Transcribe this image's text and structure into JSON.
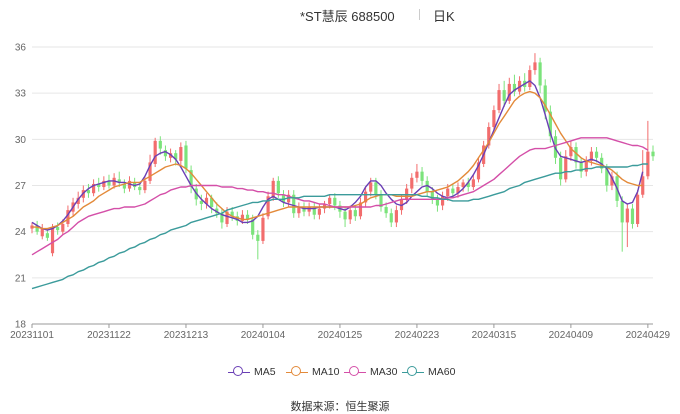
{
  "header": {
    "title": "*ST慧辰 688500",
    "period": "日K"
  },
  "source": "数据来源：恒生聚源",
  "colors": {
    "up": "#f26d6d",
    "down": "#7be37b",
    "ma5": "#6a3fb5",
    "ma10": "#e38a3a",
    "ma30": "#d44fa8",
    "ma60": "#3b9b9b"
  },
  "chart_data": {
    "type": "candlestick",
    "title": "*ST慧辰 688500",
    "ylim": [
      18,
      36
    ],
    "yticks": [
      "18",
      "21",
      "24",
      "27",
      "30",
      "33",
      "36"
    ],
    "xticks": [
      "20231101",
      "20231122",
      "20231213",
      "20240104",
      "20240125",
      "20240223",
      "20240315",
      "20240409",
      "20240429"
    ],
    "xtick_index": [
      0,
      15,
      30,
      45,
      60,
      75,
      90,
      105,
      120
    ],
    "grid": true,
    "legend_position": "bottom",
    "candles": [
      [
        24.2,
        24.4,
        24.6,
        23.9
      ],
      [
        24.4,
        24.0,
        24.7,
        23.8
      ],
      [
        23.7,
        24.2,
        24.5,
        23.5
      ],
      [
        23.9,
        23.6,
        24.2,
        23.4
      ],
      [
        22.6,
        24.3,
        24.5,
        22.4
      ],
      [
        24.3,
        24.1,
        24.6,
        23.8
      ],
      [
        24.0,
        24.5,
        24.8,
        23.8
      ],
      [
        24.5,
        25.4,
        25.7,
        24.3
      ],
      [
        25.3,
        25.9,
        26.2,
        25.0
      ],
      [
        25.8,
        26.2,
        26.6,
        25.5
      ],
      [
        26.2,
        26.7,
        27.0,
        25.9
      ],
      [
        26.7,
        26.5,
        27.1,
        26.2
      ],
      [
        26.5,
        27.1,
        27.4,
        26.3
      ],
      [
        27.1,
        26.9,
        27.5,
        26.6
      ],
      [
        26.9,
        27.3,
        27.6,
        26.7
      ],
      [
        27.3,
        27.0,
        27.7,
        26.8
      ],
      [
        27.0,
        27.5,
        27.8,
        26.8
      ],
      [
        27.4,
        27.2,
        27.9,
        26.9
      ],
      [
        27.1,
        26.8,
        27.4,
        26.5
      ],
      [
        26.8,
        27.3,
        27.6,
        26.6
      ],
      [
        27.2,
        26.9,
        27.5,
        26.7
      ],
      [
        26.9,
        26.7,
        27.2,
        26.4
      ],
      [
        26.7,
        27.3,
        27.6,
        26.5
      ],
      [
        27.3,
        28.5,
        29.0,
        27.1
      ],
      [
        28.4,
        29.9,
        30.1,
        28.2
      ],
      [
        29.9,
        29.4,
        30.2,
        29.0
      ],
      [
        29.3,
        28.9,
        29.6,
        28.6
      ],
      [
        28.8,
        29.1,
        29.4,
        28.5
      ],
      [
        29.1,
        28.7,
        29.3,
        28.3
      ],
      [
        28.6,
        29.5,
        29.8,
        28.3
      ],
      [
        29.6,
        28.1,
        29.9,
        27.8
      ],
      [
        28.0,
        26.9,
        28.3,
        26.5
      ],
      [
        26.8,
        26.1,
        27.1,
        25.7
      ],
      [
        26.0,
        25.8,
        26.4,
        25.4
      ],
      [
        25.8,
        26.2,
        26.5,
        25.5
      ],
      [
        26.2,
        25.6,
        26.4,
        25.2
      ],
      [
        25.5,
        25.2,
        25.9,
        24.9
      ],
      [
        25.2,
        24.6,
        25.5,
        24.2
      ],
      [
        24.5,
        25.3,
        25.6,
        24.3
      ],
      [
        25.3,
        25.0,
        25.6,
        24.7
      ],
      [
        25.0,
        24.7,
        25.3,
        24.4
      ],
      [
        24.7,
        25.1,
        25.4,
        24.5
      ],
      [
        25.1,
        24.8,
        25.4,
        24.5
      ],
      [
        24.8,
        23.8,
        25.1,
        23.5
      ],
      [
        23.8,
        23.4,
        24.1,
        22.2
      ],
      [
        23.4,
        24.9,
        25.2,
        23.2
      ],
      [
        25.0,
        26.3,
        26.6,
        24.8
      ],
      [
        26.2,
        27.3,
        27.5,
        26.0
      ],
      [
        27.3,
        26.5,
        27.6,
        26.2
      ],
      [
        26.4,
        25.9,
        26.7,
        25.6
      ],
      [
        25.9,
        26.4,
        26.7,
        25.6
      ],
      [
        26.4,
        25.2,
        26.7,
        24.9
      ],
      [
        25.2,
        25.6,
        25.9,
        24.9
      ],
      [
        25.6,
        25.3,
        25.9,
        25.0
      ],
      [
        25.3,
        25.6,
        25.9,
        25.0
      ],
      [
        25.6,
        25.1,
        25.9,
        24.8
      ],
      [
        25.1,
        25.5,
        25.8,
        24.8
      ],
      [
        25.5,
        25.8,
        26.0,
        25.2
      ],
      [
        25.8,
        26.2,
        26.4,
        25.5
      ],
      [
        26.2,
        25.7,
        26.5,
        25.4
      ],
      [
        25.7,
        25.3,
        26.0,
        24.9
      ],
      [
        25.3,
        24.8,
        25.6,
        24.3
      ],
      [
        24.8,
        25.4,
        25.7,
        24.5
      ],
      [
        25.4,
        25.0,
        25.7,
        24.7
      ],
      [
        25.0,
        25.9,
        26.2,
        24.8
      ],
      [
        25.9,
        26.6,
        26.9,
        25.6
      ],
      [
        26.6,
        27.2,
        27.5,
        26.3
      ],
      [
        27.2,
        26.4,
        27.5,
        26.1
      ],
      [
        26.4,
        25.6,
        26.7,
        25.3
      ],
      [
        25.6,
        25.2,
        25.9,
        24.9
      ],
      [
        25.2,
        24.6,
        25.5,
        24.3
      ],
      [
        24.6,
        25.4,
        25.7,
        24.3
      ],
      [
        25.4,
        26.1,
        26.4,
        25.1
      ],
      [
        26.1,
        26.8,
        27.1,
        25.8
      ],
      [
        26.8,
        27.5,
        27.8,
        26.5
      ],
      [
        27.5,
        27.9,
        28.4,
        27.2
      ],
      [
        27.9,
        27.3,
        28.2,
        27.0
      ],
      [
        27.3,
        26.6,
        27.6,
        26.3
      ],
      [
        26.6,
        26.1,
        26.9,
        25.8
      ],
      [
        26.1,
        25.7,
        26.4,
        25.3
      ],
      [
        25.7,
        26.3,
        26.6,
        25.4
      ],
      [
        26.3,
        26.8,
        27.1,
        26.0
      ],
      [
        26.8,
        26.5,
        27.1,
        26.2
      ],
      [
        26.5,
        26.9,
        27.2,
        26.2
      ],
      [
        26.9,
        27.2,
        27.4,
        26.6
      ],
      [
        27.2,
        26.9,
        27.5,
        26.6
      ],
      [
        26.9,
        27.4,
        27.7,
        26.7
      ],
      [
        27.4,
        28.5,
        28.8,
        27.2
      ],
      [
        28.4,
        29.6,
        29.9,
        28.2
      ],
      [
        29.6,
        30.8,
        31.1,
        29.4
      ],
      [
        30.8,
        31.9,
        32.2,
        30.6
      ],
      [
        31.9,
        33.2,
        33.6,
        31.7
      ],
      [
        33.2,
        32.5,
        33.8,
        32.1
      ],
      [
        32.5,
        33.6,
        34.0,
        32.3
      ],
      [
        33.6,
        33.1,
        34.2,
        32.8
      ],
      [
        33.1,
        33.8,
        34.1,
        32.9
      ],
      [
        33.8,
        33.4,
        34.3,
        33.1
      ],
      [
        33.4,
        34.5,
        34.8,
        33.2
      ],
      [
        34.5,
        35.0,
        35.6,
        34.2
      ],
      [
        35.0,
        33.5,
        35.3,
        33.0
      ],
      [
        33.5,
        31.8,
        33.9,
        31.3
      ],
      [
        31.8,
        30.2,
        32.2,
        29.8
      ],
      [
        30.2,
        28.8,
        30.6,
        28.4
      ],
      [
        28.8,
        27.4,
        29.2,
        27.0
      ],
      [
        27.4,
        28.9,
        29.3,
        27.2
      ],
      [
        28.9,
        29.5,
        29.9,
        28.6
      ],
      [
        29.5,
        28.5,
        29.8,
        28.1
      ],
      [
        28.5,
        27.9,
        28.8,
        27.5
      ],
      [
        27.9,
        28.6,
        28.9,
        27.6
      ],
      [
        28.6,
        29.2,
        29.5,
        28.3
      ],
      [
        29.2,
        28.8,
        29.5,
        28.5
      ],
      [
        28.8,
        28.1,
        29.1,
        27.8
      ],
      [
        28.1,
        27.0,
        28.4,
        26.6
      ],
      [
        27.0,
        27.6,
        27.9,
        26.7
      ],
      [
        27.6,
        26.0,
        27.9,
        25.6
      ],
      [
        26.0,
        24.6,
        26.3,
        22.7
      ],
      [
        24.6,
        25.5,
        25.8,
        23.0
      ],
      [
        25.5,
        24.5,
        25.8,
        24.2
      ],
      [
        24.5,
        26.4,
        26.7,
        24.3
      ],
      [
        26.4,
        27.6,
        29.3,
        26.2
      ],
      [
        27.6,
        29.2,
        31.2,
        27.4
      ],
      [
        29.2,
        28.9,
        29.6,
        28.6
      ]
    ],
    "series": [
      {
        "name": "MA5",
        "values": [
          24.6,
          24.4,
          24.2,
          24.1,
          24.2,
          24.4,
          24.7,
          25.1,
          25.6,
          26.1,
          26.5,
          26.8,
          27.0,
          27.1,
          27.2,
          27.3,
          27.3,
          27.2,
          27.2,
          27.1,
          27.0,
          27.1,
          27.6,
          28.3,
          28.9,
          29.1,
          29.2,
          29.0,
          28.7,
          28.2,
          27.6,
          27.0,
          26.5,
          26.1,
          25.8,
          25.5,
          25.3,
          25.1,
          25.0,
          24.9,
          24.8,
          24.6,
          24.6,
          24.7,
          25.0,
          25.6,
          26.1,
          26.3,
          26.1,
          25.9,
          25.8,
          25.7,
          25.6,
          25.5,
          25.5,
          25.5,
          25.6,
          25.6,
          25.6,
          25.6,
          25.5,
          25.4,
          25.6,
          25.9,
          26.3,
          26.9,
          27.3,
          27.3,
          27.0,
          26.5,
          26.1,
          25.8,
          25.7,
          25.9,
          26.3,
          26.6,
          26.9,
          27.0,
          26.8,
          26.5,
          26.3,
          26.2,
          26.3,
          26.5,
          26.8,
          27.2,
          27.7,
          28.3,
          29.0,
          29.8,
          30.6,
          31.4,
          32.2,
          32.9,
          33.2,
          33.4,
          33.6,
          33.8,
          33.5,
          32.7,
          31.6,
          30.4,
          29.4,
          28.9,
          28.8,
          28.7,
          28.6,
          28.5,
          28.6,
          28.7,
          28.6,
          28.4,
          28.1,
          27.5,
          26.8,
          26.0,
          25.8,
          25.9,
          26.6,
          27.9
        ]
      },
      {
        "name": "MA10",
        "values": [
          24.3,
          24.3,
          24.2,
          24.2,
          24.3,
          24.4,
          24.6,
          24.8,
          25.0,
          25.3,
          25.6,
          25.8,
          26.0,
          26.3,
          26.5,
          26.7,
          26.9,
          27.0,
          27.1,
          27.2,
          27.2,
          27.2,
          27.4,
          27.6,
          27.8,
          28.0,
          28.2,
          28.3,
          28.4,
          28.3,
          28.1,
          27.8,
          27.4,
          27.0,
          26.6,
          26.2,
          25.8,
          25.5,
          25.2,
          25.0,
          24.9,
          24.8,
          24.8,
          24.9,
          25.0,
          25.1,
          25.2,
          25.3,
          25.4,
          25.5,
          25.6,
          25.6,
          25.6,
          25.6,
          25.6,
          25.6,
          25.6,
          25.6,
          25.6,
          25.6,
          25.6,
          25.6,
          25.6,
          25.7,
          25.8,
          26.0,
          26.2,
          26.3,
          26.4,
          26.4,
          26.4,
          26.3,
          26.3,
          26.3,
          26.3,
          26.4,
          26.5,
          26.6,
          26.6,
          26.7,
          26.8,
          26.9,
          27.1,
          27.3,
          27.6,
          27.9,
          28.3,
          28.8,
          29.3,
          29.8,
          30.4,
          31.0,
          31.5,
          32.0,
          32.5,
          32.8,
          33.0,
          33.1,
          33.0,
          32.7,
          32.2,
          31.6,
          31.0,
          30.4,
          29.9,
          29.4,
          29.1,
          28.8,
          28.6,
          28.5,
          28.4,
          28.3,
          28.2,
          28.0,
          27.7,
          27.4,
          27.2,
          27.1,
          27.0,
          27.0
        ]
      },
      {
        "name": "MA30",
        "values": [
          22.5,
          22.7,
          22.9,
          23.1,
          23.3,
          23.5,
          23.8,
          24.0,
          24.3,
          24.6,
          24.8,
          25.0,
          25.1,
          25.2,
          25.3,
          25.4,
          25.5,
          25.5,
          25.6,
          25.6,
          25.6,
          25.7,
          25.8,
          26.0,
          26.2,
          26.4,
          26.5,
          26.7,
          26.8,
          26.9,
          26.9,
          27.0,
          27.0,
          27.0,
          27.0,
          27.0,
          27.0,
          26.9,
          26.9,
          26.9,
          26.8,
          26.8,
          26.7,
          26.7,
          26.6,
          26.6,
          26.5,
          26.5,
          26.4,
          26.4,
          26.3,
          26.2,
          26.1,
          26.0,
          26.0,
          25.9,
          25.8,
          25.8,
          25.7,
          25.6,
          25.6,
          25.6,
          25.6,
          25.6,
          25.6,
          25.6,
          25.6,
          25.7,
          25.7,
          25.8,
          25.9,
          26.0,
          26.1,
          26.1,
          26.1,
          26.1,
          26.1,
          26.1,
          26.1,
          26.1,
          26.1,
          26.2,
          26.2,
          26.3,
          26.4,
          26.5,
          26.6,
          26.8,
          27.0,
          27.2,
          27.4,
          27.7,
          28.0,
          28.3,
          28.6,
          28.9,
          29.1,
          29.3,
          29.4,
          29.4,
          29.4,
          29.5,
          29.6,
          29.7,
          29.8,
          29.9,
          30.0,
          30.1,
          30.1,
          30.1,
          30.1,
          30.1,
          30.1,
          30.0,
          29.9,
          29.8,
          29.7,
          29.6,
          29.6,
          29.5,
          29.3
        ]
      },
      {
        "name": "MA60",
        "values": [
          20.3,
          20.4,
          20.5,
          20.6,
          20.7,
          20.8,
          20.9,
          21.1,
          21.2,
          21.4,
          21.5,
          21.7,
          21.8,
          22.0,
          22.1,
          22.3,
          22.4,
          22.6,
          22.7,
          22.9,
          23.0,
          23.2,
          23.3,
          23.5,
          23.6,
          23.8,
          23.9,
          24.1,
          24.2,
          24.3,
          24.4,
          24.6,
          24.7,
          24.8,
          24.9,
          25.0,
          25.1,
          25.2,
          25.4,
          25.5,
          25.6,
          25.7,
          25.8,
          25.9,
          25.9,
          26.0,
          26.0,
          26.1,
          26.1,
          26.1,
          26.2,
          26.2,
          26.2,
          26.3,
          26.3,
          26.3,
          26.3,
          26.3,
          26.4,
          26.4,
          26.4,
          26.4,
          26.4,
          26.4,
          26.4,
          26.4,
          26.4,
          26.4,
          26.4,
          26.4,
          26.4,
          26.4,
          26.4,
          26.4,
          26.4,
          26.4,
          26.3,
          26.3,
          26.2,
          26.2,
          26.1,
          26.1,
          26.0,
          26.0,
          26.0,
          26.0,
          26.1,
          26.1,
          26.2,
          26.3,
          26.4,
          26.5,
          26.6,
          26.8,
          26.9,
          27.0,
          27.2,
          27.3,
          27.4,
          27.5,
          27.6,
          27.7,
          27.8,
          27.8,
          27.9,
          27.9,
          28.0,
          28.0,
          28.1,
          28.1,
          28.2,
          28.2,
          28.2,
          28.2,
          28.2,
          28.2,
          28.2,
          28.3,
          28.3,
          28.4,
          28.4
        ]
      }
    ]
  }
}
